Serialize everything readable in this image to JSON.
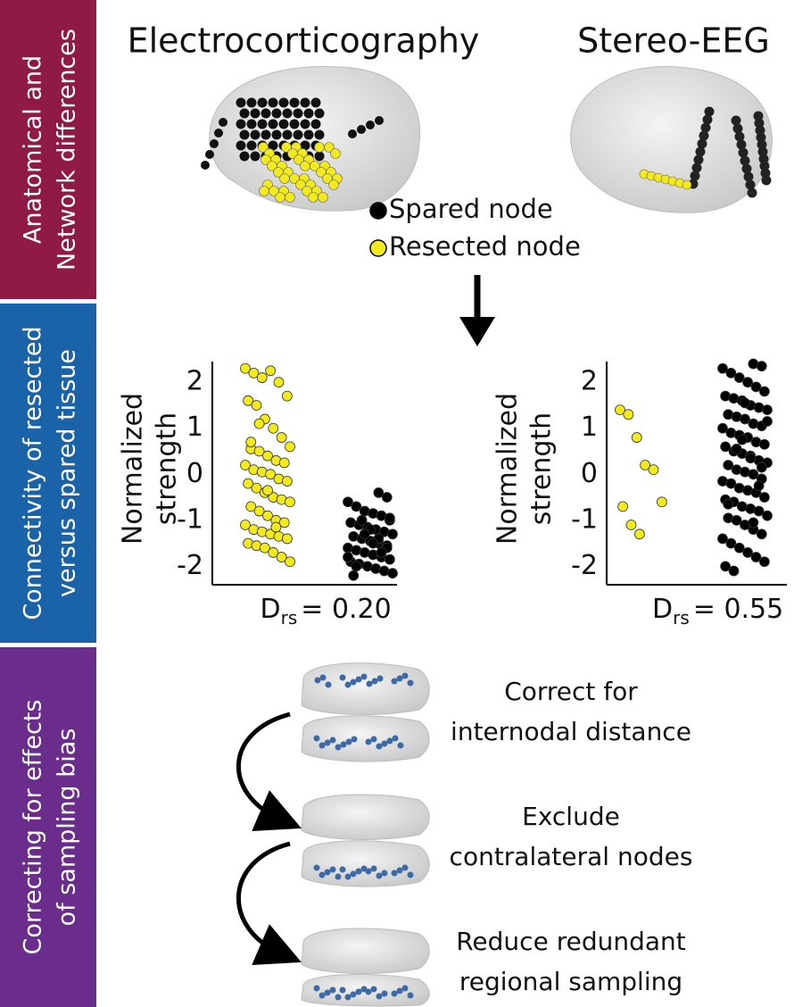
{
  "sidebar": [
    {
      "lines": [
        "Anatomical and",
        "Network differences"
      ],
      "color": "#8e1a45"
    },
    {
      "lines": [
        "Connectivity of resected",
        "versus spared tissue"
      ],
      "color": "#1b63a8"
    },
    {
      "lines": [
        "Correcting for effects",
        "of sampling bias"
      ],
      "color": "#6a2d8c"
    }
  ],
  "panel_a": {
    "titles": [
      "Electrocorticography",
      "Stereo-EEG"
    ],
    "legend": [
      {
        "label": "Spared node",
        "color": "#000000"
      },
      {
        "label": "Resected node",
        "color": "#f2ea1c"
      }
    ]
  },
  "chart_data": [
    {
      "type": "strip",
      "ylabel": [
        "Normalized",
        "strength"
      ],
      "annotation": [
        "D",
        "rs",
        "= 0.20"
      ],
      "ylim": [
        -2.4,
        2.45
      ],
      "yticks": [
        2,
        1,
        0,
        -1,
        -2
      ],
      "series": [
        {
          "color": "#f2ea1c",
          "values": [
            2.3,
            2.2,
            2.1,
            2.25,
            2.0,
            1.7,
            1.6,
            1.5,
            1.2,
            1.0,
            0.8,
            0.6,
            0.55,
            0.5,
            0.4,
            0.3,
            0.25,
            0.2,
            0.1,
            0.05,
            0.0,
            -0.1,
            -0.15,
            -0.2,
            -0.3,
            -0.4,
            -0.5,
            -0.55,
            -0.6,
            -0.7,
            -0.8,
            -0.9,
            -1.0,
            -1.05,
            -1.1,
            -1.2,
            -1.25,
            -1.3,
            -1.35,
            -1.4,
            -1.5,
            -1.55,
            -1.6,
            -1.7,
            -1.8,
            -1.9,
            0.7,
            1.1,
            -0.35,
            -1.15
          ]
        },
        {
          "color": "#000000",
          "values": [
            -0.4,
            -0.5,
            -0.6,
            -0.7,
            -0.8,
            -0.85,
            -0.9,
            -1.0,
            -1.05,
            -1.1,
            -1.15,
            -1.2,
            -1.25,
            -1.3,
            -1.35,
            -1.4,
            -1.45,
            -1.5,
            -1.55,
            -1.6,
            -1.65,
            -1.7,
            -1.75,
            -1.8,
            -1.85,
            -1.9,
            -1.95,
            -2.0,
            -2.05,
            -2.1,
            -2.15,
            -2.2,
            -1.0,
            -1.2,
            -1.4,
            -1.6,
            -1.8,
            -2.0,
            -1.3,
            -1.5,
            -1.7,
            -0.95
          ]
        }
      ]
    },
    {
      "type": "strip",
      "ylabel": [
        "Normalized",
        "strength"
      ],
      "annotation": [
        "D",
        "rs",
        "= 0.55"
      ],
      "ylim": [
        -2.4,
        2.45
      ],
      "yticks": [
        2,
        1,
        0,
        -1,
        -2
      ],
      "series": [
        {
          "color": "#f2ea1c",
          "values": [
            1.4,
            1.3,
            0.8,
            0.2,
            0.1,
            -0.6,
            -0.7,
            -1.1,
            -1.3
          ]
        },
        {
          "color": "#000000",
          "values": [
            2.4,
            2.35,
            2.3,
            2.2,
            2.1,
            2.0,
            1.9,
            1.8,
            1.7,
            1.65,
            1.6,
            1.5,
            1.45,
            1.4,
            1.3,
            1.25,
            1.2,
            1.1,
            1.05,
            1.0,
            0.9,
            0.85,
            0.8,
            0.7,
            0.65,
            0.6,
            0.5,
            0.45,
            0.4,
            0.3,
            0.25,
            0.2,
            0.1,
            0.05,
            0.0,
            -0.1,
            -0.15,
            -0.2,
            -0.3,
            -0.35,
            -0.4,
            -0.5,
            -0.55,
            -0.6,
            -0.7,
            -0.75,
            -0.8,
            -0.9,
            -0.95,
            -1.0,
            -1.1,
            -1.2,
            -1.3,
            -1.4,
            -1.5,
            -1.6,
            -1.7,
            -1.8,
            -1.9,
            -2.0,
            -2.1,
            0.75,
            0.35,
            -0.25,
            1.15,
            -0.65,
            0.55,
            1.55,
            -1.05,
            0.15
          ]
        }
      ]
    }
  ],
  "panel_c": {
    "steps": [
      [
        "Correct for",
        "internodal distance"
      ],
      [
        "Exclude",
        "contralateral nodes"
      ],
      [
        "Reduce redundant",
        "regional sampling"
      ]
    ]
  }
}
